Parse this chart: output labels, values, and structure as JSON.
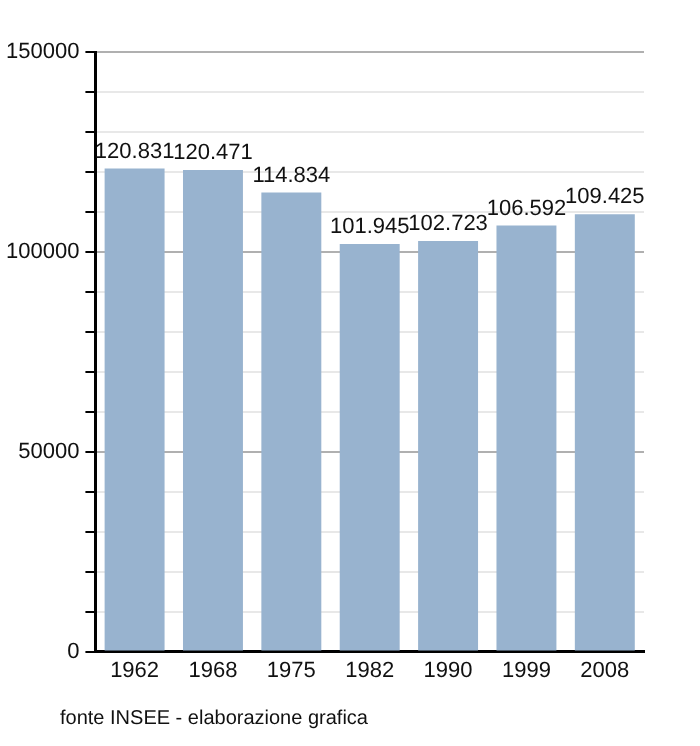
{
  "chart_data": {
    "type": "bar",
    "categories": [
      "1962",
      "1968",
      "1975",
      "1982",
      "1990",
      "1999",
      "2008"
    ],
    "values": [
      120831,
      120471,
      114834,
      101945,
      102723,
      106592,
      109425
    ],
    "value_labels": [
      "120.831",
      "120.471",
      "114.834",
      "101.945",
      "102.723",
      "106.592",
      "109.425"
    ],
    "color": "#98b3cf",
    "ylim": [
      0,
      150000
    ],
    "yticks": [
      0,
      {
        "value": 10000,
        "label": null
      },
      {
        "value": 20000,
        "label": null
      },
      {
        "value": 30000,
        "label": null
      },
      {
        "value": 40000,
        "label": null
      },
      50000,
      {
        "value": 60000,
        "label": null
      },
      {
        "value": 70000,
        "label": null
      },
      {
        "value": 80000,
        "label": null
      },
      {
        "value": 90000,
        "label": null
      },
      100000,
      {
        "value": 110000,
        "label": null
      },
      {
        "value": 120000,
        "label": null
      },
      {
        "value": 130000,
        "label": null
      },
      {
        "value": 140000,
        "label": null
      },
      150000
    ],
    "grid": true,
    "annotations": [
      "fonte INSEE - elaborazione grafica"
    ]
  }
}
